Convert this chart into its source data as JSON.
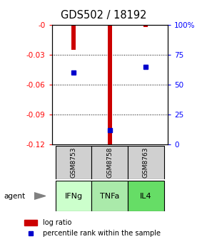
{
  "title": "GDS502 / 18192",
  "samples": [
    "GSM8753",
    "GSM8758",
    "GSM8763"
  ],
  "agents": [
    "IFNg",
    "TNFa",
    "IL4"
  ],
  "log_ratios": [
    -0.025,
    -0.121,
    -0.002
  ],
  "percentile_ranks": [
    0.6,
    0.12,
    0.65
  ],
  "bar_color": "#cc0000",
  "dot_color": "#0000cc",
  "ylim_left": [
    -0.12,
    0.0
  ],
  "ylim_right": [
    0.0,
    1.0
  ],
  "yticks_left": [
    0.0,
    -0.03,
    -0.06,
    -0.09,
    -0.12
  ],
  "yticks_right": [
    0.0,
    0.25,
    0.5,
    0.75,
    1.0
  ],
  "ytick_labels_right": [
    "0",
    "25",
    "50",
    "75",
    "100%"
  ],
  "ytick_labels_left": [
    "-0",
    "-0.03",
    "-0.06",
    "-0.09",
    "-0.12"
  ],
  "agent_colors": [
    "#ccffcc",
    "#aaeaaa",
    "#66dd66"
  ],
  "sample_box_color": "#d0d0d0",
  "bar_width": 0.12,
  "legend_log_ratio_color": "#cc0000",
  "legend_percentile_color": "#0000cc",
  "legend_label_log": "log ratio",
  "legend_label_pct": "percentile rank within the sample"
}
